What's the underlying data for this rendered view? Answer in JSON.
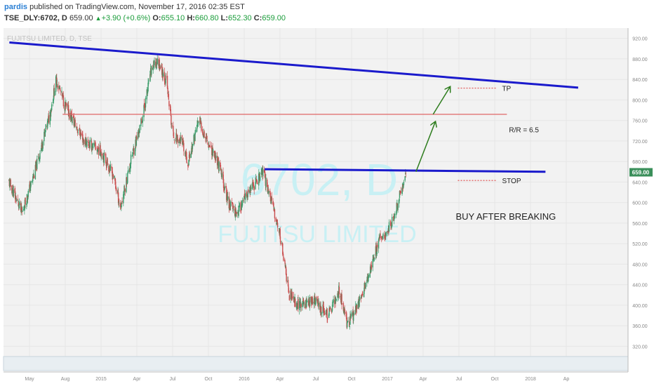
{
  "header": {
    "author": "pardis",
    "published_text": " published on TradingView.com, November 17, 2016 02:35 EST",
    "symbol": "TSE_DLY:6702, D",
    "last": "659.00",
    "change": "+3.90 (+0.6%)",
    "open_label": "O:",
    "open": "655.10",
    "high_label": "H:",
    "high": "660.80",
    "low_label": "L:",
    "low": "652.30",
    "close_label": "C:",
    "close": "659.00"
  },
  "colors": {
    "bull": "#3a9c6a",
    "bear": "#c94d4d",
    "trendline": "#1a1acc",
    "level_line": "#e06666",
    "arrow": "#2e7d1e",
    "watermark": "#c8f0f4",
    "price_badge": "#3a8f5a",
    "grid": "#e6e6e6",
    "plot_bg": "#f2f2f2"
  },
  "chart_data": {
    "type": "candlestick",
    "watermark_symbol": "6702, D",
    "watermark_name": "FUJITSU LIMITED",
    "chart_title": "FUJITSU LIMITED, D, TSE",
    "ylim": [
      300,
      940
    ],
    "y_ticks": [
      320,
      360,
      400,
      440,
      480,
      520,
      560,
      600,
      640,
      680,
      720,
      760,
      800,
      840,
      880,
      920
    ],
    "x_ticks": [
      "May",
      "Aug",
      "2015",
      "Apr",
      "Jul",
      "Oct",
      "2016",
      "Apr",
      "Jul",
      "Oct",
      "2017",
      "Apr",
      "Jul",
      "Oct",
      "2018",
      "Ap"
    ],
    "current_price": "659.00",
    "price_path": [
      {
        "date": "2014-04-14",
        "price": 640
      },
      {
        "date": "2014-05-15",
        "price": 580
      },
      {
        "date": "2014-06-15",
        "price": 660
      },
      {
        "date": "2014-07-20",
        "price": 770
      },
      {
        "date": "2014-08-05",
        "price": 840
      },
      {
        "date": "2014-08-25",
        "price": 790
      },
      {
        "date": "2014-10-10",
        "price": 720
      },
      {
        "date": "2014-11-20",
        "price": 700
      },
      {
        "date": "2014-12-20",
        "price": 650
      },
      {
        "date": "2015-01-05",
        "price": 590
      },
      {
        "date": "2015-02-01",
        "price": 690
      },
      {
        "date": "2015-02-25",
        "price": 760
      },
      {
        "date": "2015-03-20",
        "price": 860
      },
      {
        "date": "2015-04-05",
        "price": 876
      },
      {
        "date": "2015-04-25",
        "price": 835
      },
      {
        "date": "2015-05-10",
        "price": 730
      },
      {
        "date": "2015-05-30",
        "price": 720
      },
      {
        "date": "2015-06-15",
        "price": 676
      },
      {
        "date": "2015-07-10",
        "price": 760
      },
      {
        "date": "2015-08-01",
        "price": 720
      },
      {
        "date": "2015-08-25",
        "price": 680
      },
      {
        "date": "2015-09-20",
        "price": 600
      },
      {
        "date": "2015-10-10",
        "price": 580
      },
      {
        "date": "2015-11-01",
        "price": 610
      },
      {
        "date": "2015-12-10",
        "price": 660
      },
      {
        "date": "2015-12-22",
        "price": 630
      },
      {
        "date": "2016-01-20",
        "price": 540
      },
      {
        "date": "2016-02-12",
        "price": 420
      },
      {
        "date": "2016-03-05",
        "price": 400
      },
      {
        "date": "2016-04-10",
        "price": 410
      },
      {
        "date": "2016-05-15",
        "price": 380
      },
      {
        "date": "2016-06-10",
        "price": 430
      },
      {
        "date": "2016-06-30",
        "price": 360
      },
      {
        "date": "2016-07-30",
        "price": 410
      },
      {
        "date": "2016-08-20",
        "price": 460
      },
      {
        "date": "2016-09-10",
        "price": 520
      },
      {
        "date": "2016-10-10",
        "price": 555
      },
      {
        "date": "2016-10-25",
        "price": 590
      },
      {
        "date": "2016-11-10",
        "price": 640
      },
      {
        "date": "2016-11-16",
        "price": 659
      }
    ],
    "lines": [
      {
        "name": "upper-trendline",
        "start": {
          "date": "2014-04-15",
          "price": 912
        },
        "end": {
          "date": "2018-01-01",
          "price": 824
        }
      },
      {
        "name": "horizontal-level",
        "start": {
          "date": "2014-08-20",
          "price": 772
        },
        "end": {
          "date": "2017-07-15",
          "price": 772
        }
      },
      {
        "name": "breakout-line",
        "start": {
          "date": "2015-12-15",
          "price": 665
        },
        "end": {
          "date": "2017-10-15",
          "price": 660
        }
      }
    ],
    "arrows": [
      {
        "from": {
          "date": "2016-12-10",
          "price": 660
        },
        "to": {
          "date": "2017-01-25",
          "price": 757
        }
      },
      {
        "from": {
          "date": "2017-01-20",
          "price": 772
        },
        "to": {
          "date": "2017-03-01",
          "price": 825
        }
      }
    ],
    "markers": [
      {
        "label": "TP",
        "date_start": "2017-03-20",
        "date_end": "2017-06-20",
        "price": 823
      },
      {
        "label": "STOP",
        "date_start": "2017-03-20",
        "date_end": "2017-06-20",
        "price": 643
      }
    ],
    "annotations": [
      {
        "text": "R/R = 6.5",
        "date": "2017-07-20",
        "price": 737
      },
      {
        "text": "BUY AFTER BREAKING",
        "date": "2017-03-15",
        "price": 567
      }
    ]
  }
}
